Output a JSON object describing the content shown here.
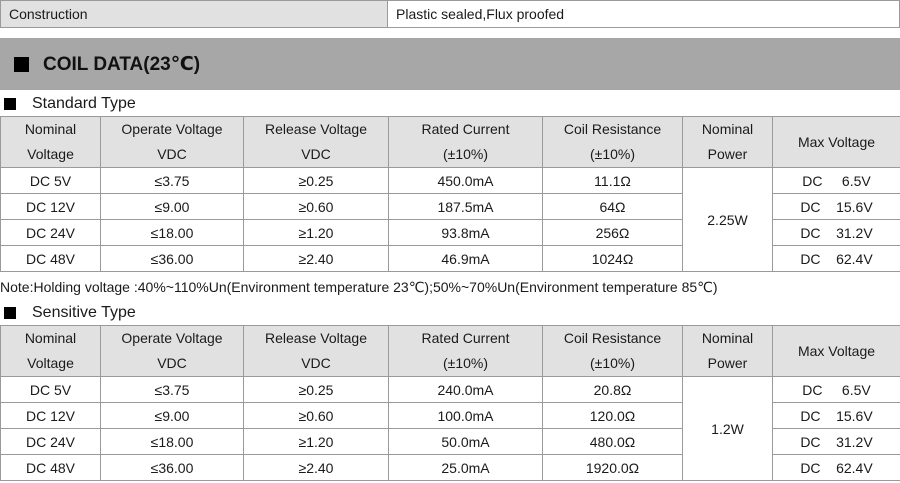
{
  "construction": {
    "label": "Construction",
    "value": "Plastic sealed,Flux proofed"
  },
  "section_title": "COIL DATA(23℃)",
  "headers": [
    {
      "line1": "Nominal",
      "line2": "Voltage"
    },
    {
      "line1": "Operate Voltage",
      "line2": "VDC"
    },
    {
      "line1": "Release Voltage",
      "line2": "VDC"
    },
    {
      "line1": "Rated Current",
      "line2": "(±10%)"
    },
    {
      "line1": "Coil Resistance",
      "line2": "(±10%)"
    },
    {
      "line1": "Nominal",
      "line2": "Power"
    },
    {
      "line1": "Max Voltage",
      "line2": ""
    }
  ],
  "standard": {
    "title": "Standard Type",
    "power": "2.25W",
    "rows": [
      {
        "nominal": "DC   5V",
        "operate": "≤3.75",
        "release": "≥0.25",
        "current": "450.0mA",
        "resistance": "11.1Ω",
        "max": "DC     6.5V"
      },
      {
        "nominal": "DC 12V",
        "operate": "≤9.00",
        "release": "≥0.60",
        "current": "187.5mA",
        "resistance": "64Ω",
        "max": "DC    15.6V"
      },
      {
        "nominal": "DC 24V",
        "operate": "≤18.00",
        "release": "≥1.20",
        "current": "93.8mA",
        "resistance": "256Ω",
        "max": "DC    31.2V"
      },
      {
        "nominal": "DC 48V",
        "operate": "≤36.00",
        "release": "≥2.40",
        "current": "46.9mA",
        "resistance": "1024Ω",
        "max": "DC    62.4V"
      }
    ]
  },
  "note": "Note:Holding voltage :40%~110%Un(Environment temperature 23℃);50%~70%Un(Environment temperature 85℃)",
  "sensitive": {
    "title": "Sensitive Type",
    "power": "1.2W",
    "rows": [
      {
        "nominal": "DC   5V",
        "operate": "≤3.75",
        "release": "≥0.25",
        "current": "240.0mA",
        "resistance": "20.8Ω",
        "max": "DC     6.5V"
      },
      {
        "nominal": "DC 12V",
        "operate": "≤9.00",
        "release": "≥0.60",
        "current": "100.0mA",
        "resistance": "120.0Ω",
        "max": "DC    15.6V"
      },
      {
        "nominal": "DC 24V",
        "operate": "≤18.00",
        "release": "≥1.20",
        "current": "50.0mA",
        "resistance": "480.0Ω",
        "max": "DC    31.2V"
      },
      {
        "nominal": "DC 48V",
        "operate": "≤36.00",
        "release": "≥2.40",
        "current": "25.0mA",
        "resistance": "1920.0Ω",
        "max": "DC    62.4V"
      }
    ]
  }
}
